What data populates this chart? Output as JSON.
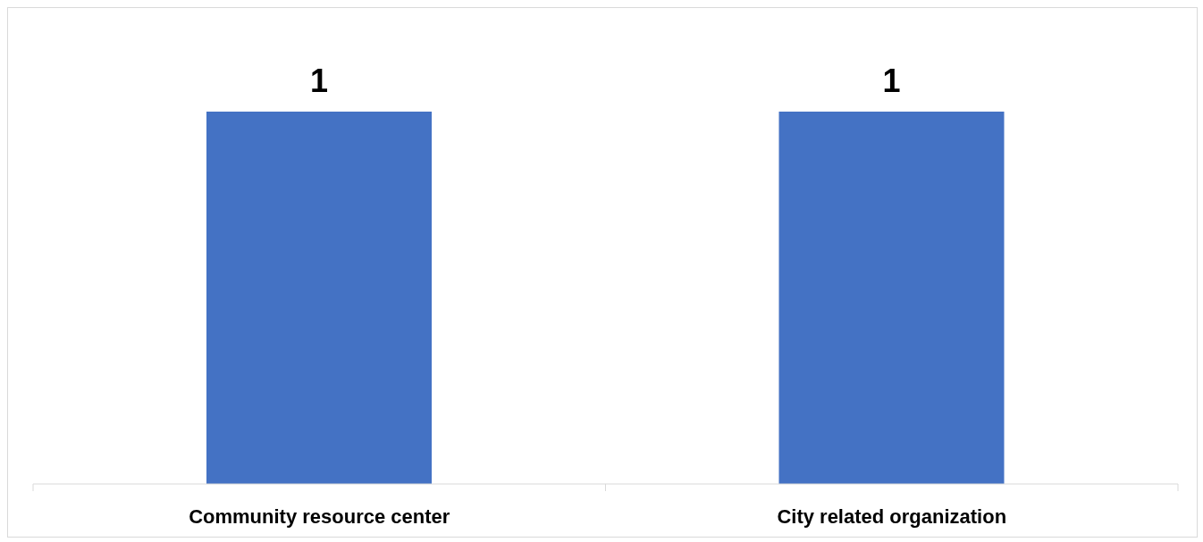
{
  "chart_data": {
    "type": "bar",
    "categories": [
      "Community resource center",
      "City related organization"
    ],
    "values": [
      1,
      1
    ],
    "color": "#4472c4",
    "data_labels": true,
    "grid": false,
    "legend": false
  }
}
